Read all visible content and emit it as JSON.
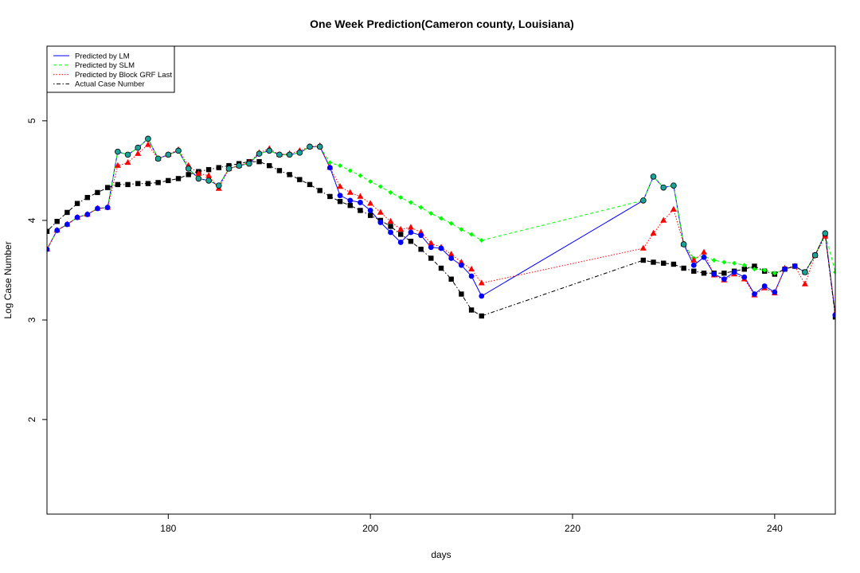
{
  "chart_data": {
    "type": "line",
    "title": "One Week Prediction(Cameron county, Louisiana)",
    "xlabel": "days",
    "ylabel": "Log Case Number",
    "xlim": [
      168,
      246
    ],
    "ylim": [
      1.05,
      5.75
    ],
    "xticks": [
      180,
      200,
      220,
      240
    ],
    "yticks": [
      2,
      3,
      4,
      5
    ],
    "legend_position": "top-left",
    "series": [
      {
        "name": "Predicted by LM",
        "color": "#0000ff",
        "line_style": "solid",
        "marker": "circle",
        "x": [
          168,
          169,
          170,
          171,
          172,
          173,
          174,
          175,
          176,
          177,
          178,
          179,
          180,
          181,
          182,
          183,
          184,
          185,
          186,
          187,
          188,
          189,
          190,
          191,
          192,
          193,
          194,
          195,
          196,
          197,
          198,
          199,
          200,
          201,
          202,
          203,
          204,
          205,
          206,
          207,
          208,
          209,
          210,
          211,
          227,
          228,
          229,
          230,
          231,
          232,
          233,
          234,
          235,
          236,
          237,
          238,
          239,
          240,
          241,
          242,
          243,
          244,
          245,
          246
        ],
        "y": [
          3.71,
          3.9,
          3.96,
          4.03,
          4.06,
          4.12,
          4.13,
          4.69,
          4.66,
          4.73,
          4.82,
          4.62,
          4.66,
          4.7,
          4.52,
          4.42,
          4.4,
          4.35,
          4.52,
          4.55,
          4.57,
          4.67,
          4.7,
          4.66,
          4.66,
          4.68,
          4.74,
          4.74,
          4.53,
          4.25,
          4.2,
          4.18,
          4.1,
          3.98,
          3.88,
          3.78,
          3.88,
          3.85,
          3.73,
          3.72,
          3.62,
          3.55,
          3.44,
          3.24,
          4.2,
          4.44,
          4.33,
          4.35,
          3.76,
          3.55,
          3.63,
          3.46,
          3.41,
          3.48,
          3.43,
          3.26,
          3.34,
          3.28,
          3.51,
          3.54,
          3.48,
          3.65,
          3.87,
          3.05
        ]
      },
      {
        "name": "Predicted by SLM",
        "color": "#00ff00",
        "line_style": "dashed",
        "marker": "diamond",
        "x": [
          168,
          169,
          170,
          171,
          172,
          173,
          174,
          175,
          176,
          177,
          178,
          179,
          180,
          181,
          182,
          183,
          184,
          185,
          186,
          187,
          188,
          189,
          190,
          191,
          192,
          193,
          194,
          195,
          196,
          197,
          198,
          199,
          200,
          201,
          202,
          203,
          204,
          205,
          206,
          207,
          208,
          209,
          210,
          211,
          227,
          228,
          229,
          230,
          231,
          232,
          233,
          234,
          235,
          236,
          237,
          238,
          239,
          240,
          241,
          242,
          243,
          244,
          245,
          246
        ],
        "y": [
          3.71,
          3.9,
          3.96,
          4.03,
          4.06,
          4.12,
          4.13,
          4.69,
          4.66,
          4.73,
          4.82,
          4.62,
          4.66,
          4.7,
          4.52,
          4.42,
          4.4,
          4.35,
          4.52,
          4.55,
          4.57,
          4.67,
          4.7,
          4.66,
          4.66,
          4.68,
          4.74,
          4.74,
          4.58,
          4.55,
          4.5,
          4.45,
          4.39,
          4.34,
          4.28,
          4.23,
          4.18,
          4.13,
          4.07,
          4.02,
          3.97,
          3.91,
          3.86,
          3.8,
          4.2,
          4.44,
          4.33,
          4.35,
          3.76,
          3.62,
          3.64,
          3.6,
          3.58,
          3.57,
          3.55,
          3.51,
          3.5,
          3.47,
          3.51,
          3.54,
          3.48,
          3.65,
          3.87,
          3.48
        ]
      },
      {
        "name": "Predicted by Block GRF Last",
        "color": "#ff0000",
        "line_style": "dotted",
        "marker": "triangle",
        "x": [
          168,
          169,
          170,
          171,
          172,
          173,
          174,
          175,
          176,
          177,
          178,
          179,
          180,
          181,
          182,
          183,
          184,
          185,
          186,
          187,
          188,
          189,
          190,
          191,
          192,
          193,
          194,
          195,
          196,
          197,
          198,
          199,
          200,
          201,
          202,
          203,
          204,
          205,
          206,
          207,
          208,
          209,
          210,
          211,
          227,
          228,
          229,
          230,
          231,
          232,
          233,
          234,
          235,
          236,
          237,
          238,
          239,
          240,
          241,
          242,
          243,
          244,
          245,
          246
        ],
        "y": [
          3.71,
          3.9,
          3.96,
          4.03,
          4.06,
          4.12,
          4.13,
          4.55,
          4.58,
          4.67,
          4.76,
          4.62,
          4.66,
          4.71,
          4.55,
          4.47,
          4.45,
          4.32,
          4.52,
          4.55,
          4.58,
          4.68,
          4.72,
          4.66,
          4.67,
          4.7,
          4.74,
          4.75,
          4.53,
          4.34,
          4.28,
          4.24,
          4.17,
          4.08,
          3.99,
          3.91,
          3.93,
          3.88,
          3.77,
          3.73,
          3.66,
          3.58,
          3.51,
          3.37,
          3.72,
          3.87,
          4.0,
          4.11,
          3.76,
          3.6,
          3.68,
          3.45,
          3.4,
          3.46,
          3.41,
          3.25,
          3.32,
          3.27,
          3.52,
          3.54,
          3.36,
          3.65,
          3.84,
          3.07
        ]
      },
      {
        "name": "Actual Case Number",
        "color": "#000000",
        "line_style": "dotdash",
        "marker": "square",
        "x": [
          168,
          169,
          170,
          171,
          172,
          173,
          174,
          175,
          176,
          177,
          178,
          179,
          180,
          181,
          182,
          183,
          184,
          185,
          186,
          187,
          188,
          189,
          190,
          191,
          192,
          193,
          194,
          195,
          196,
          197,
          198,
          199,
          200,
          201,
          202,
          203,
          204,
          205,
          206,
          207,
          208,
          209,
          210,
          211,
          227,
          228,
          229,
          230,
          231,
          232,
          233,
          234,
          235,
          236,
          237,
          238,
          239,
          240,
          241,
          242,
          243,
          244,
          245,
          246
        ],
        "y": [
          3.89,
          3.99,
          4.08,
          4.17,
          4.23,
          4.28,
          4.33,
          4.36,
          4.36,
          4.37,
          4.37,
          4.38,
          4.4,
          4.42,
          4.46,
          4.49,
          4.51,
          4.53,
          4.55,
          4.57,
          4.59,
          4.59,
          4.55,
          4.5,
          4.46,
          4.41,
          4.36,
          4.3,
          4.24,
          4.19,
          4.15,
          4.1,
          4.05,
          4.0,
          3.94,
          3.86,
          3.79,
          3.71,
          3.62,
          3.52,
          3.41,
          3.26,
          3.1,
          3.04,
          3.6,
          3.58,
          3.57,
          3.56,
          3.52,
          3.49,
          3.47,
          3.47,
          3.47,
          3.49,
          3.51,
          3.54,
          3.49,
          3.46,
          3.51,
          3.54,
          3.48,
          3.65,
          3.86,
          3.03
        ]
      }
    ]
  }
}
